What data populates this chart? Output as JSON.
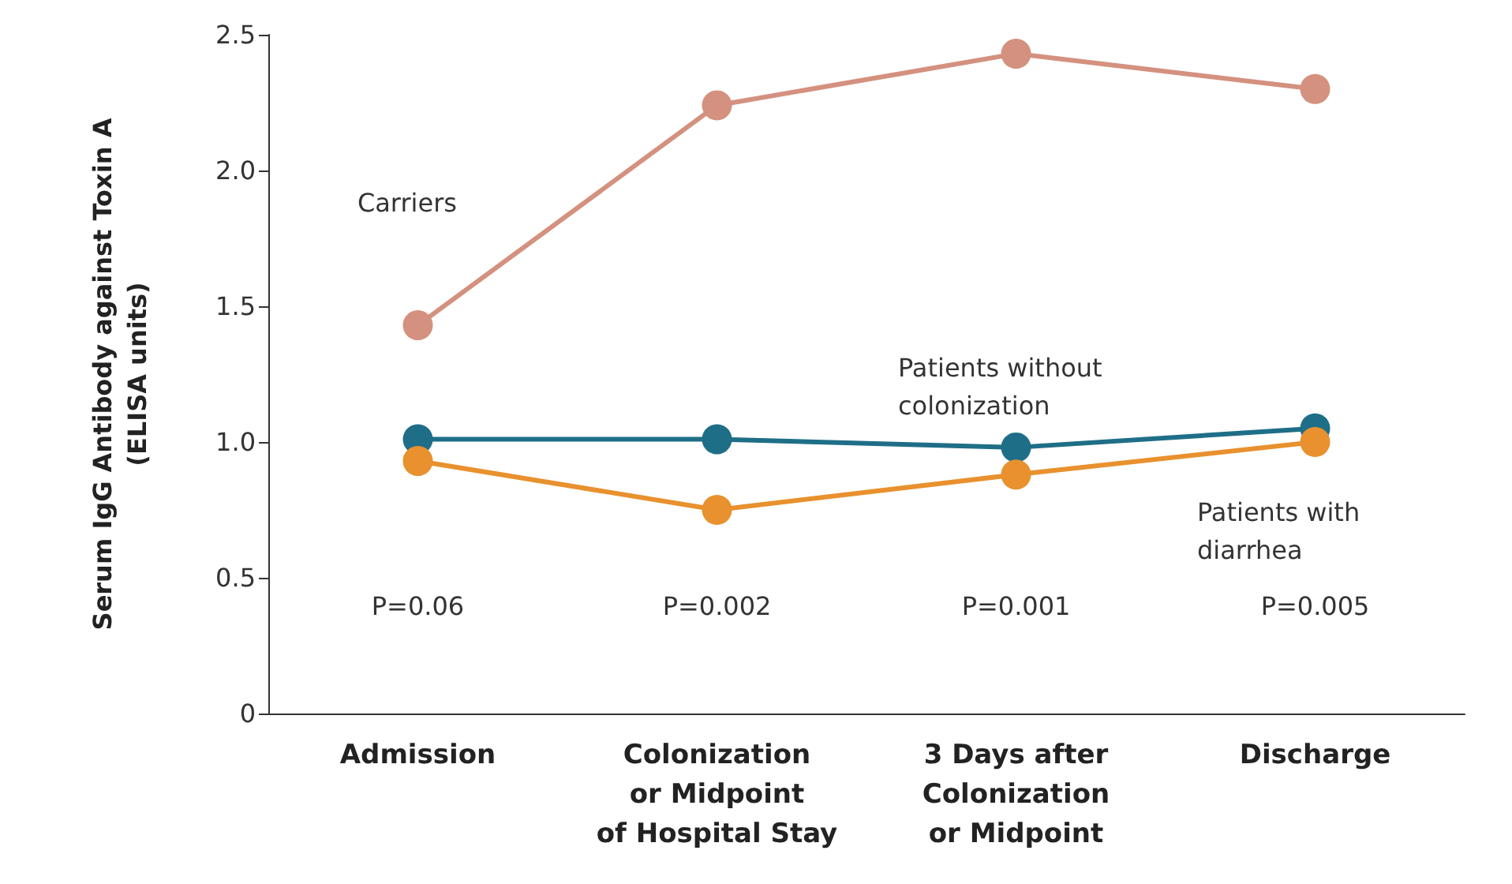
{
  "chart_data": {
    "type": "line",
    "ylabel": "Serum IgG Antibody against Toxin A\n(ELISA units)",
    "categories": [
      "Admission",
      "Colonization\nor Midpoint\nof Hospital Stay",
      "3 Days after\nColonization\nor Midpoint",
      "Discharge"
    ],
    "series": [
      {
        "name": "Carriers",
        "color": "#d4917f",
        "values": [
          1.43,
          2.24,
          2.43,
          2.3
        ]
      },
      {
        "name": "Patients without\ncolonization",
        "color": "#1f6e87",
        "values": [
          1.01,
          1.01,
          0.98,
          1.05
        ]
      },
      {
        "name": "Patients with\ndiarrhea",
        "color": "#e8912e",
        "values": [
          0.93,
          0.75,
          0.88,
          1.0
        ]
      }
    ],
    "ylim": [
      0,
      2.5
    ],
    "yticks": [
      0,
      0.5,
      {
        "value": 1,
        "label": "1.0"
      },
      1.5,
      {
        "value": 2,
        "label": "2.0"
      },
      2.5
    ],
    "annotations": [
      "P=0.06",
      "P=0.002",
      "P=0.001",
      "P=0.005"
    ],
    "grid": false,
    "legend": false,
    "marker": "circle",
    "line_style": "solid"
  }
}
